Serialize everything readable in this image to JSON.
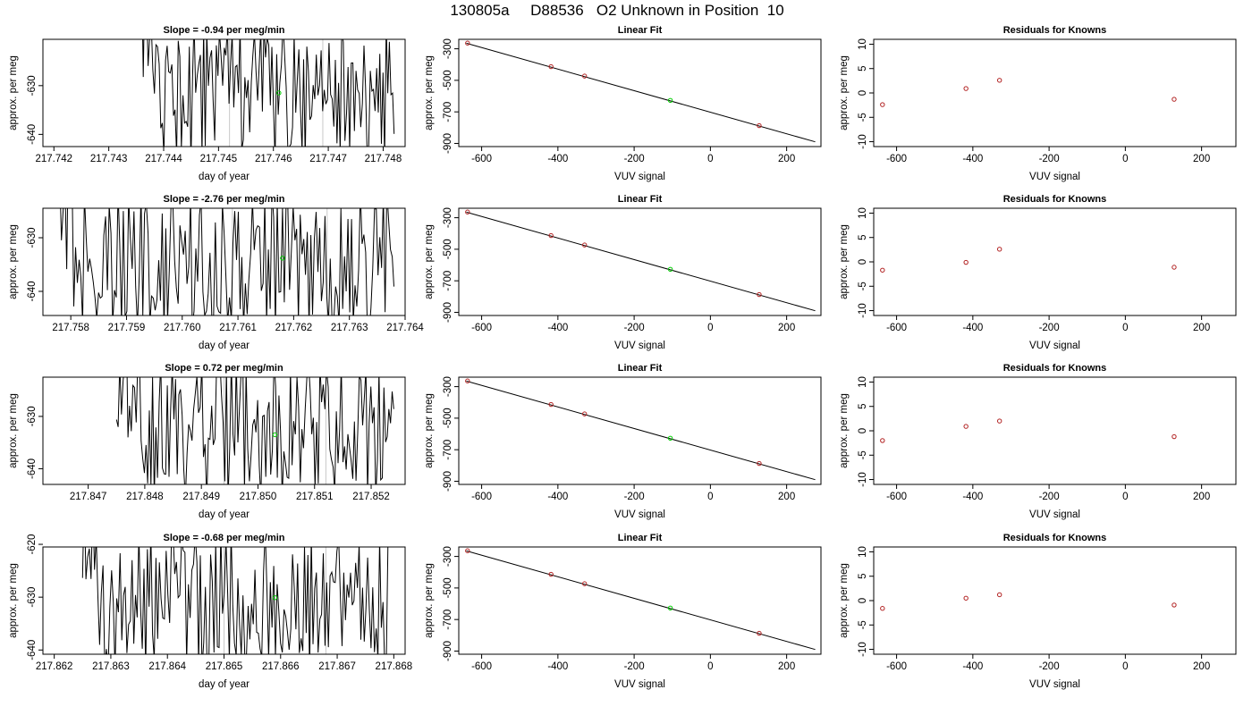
{
  "figure_title": "130805a     D88536   O2 Unknown in Position  10",
  "colors": {
    "line": "#000000",
    "known": "#b22222",
    "unknown": "#00cc00",
    "vline": "#c8c8c8"
  },
  "chart_data": [
    {
      "type": "line",
      "row": 0,
      "panel": "time",
      "title": "Slope =  -0.94  per meg/min",
      "xlabel": "day of year",
      "ylabel": "approx. per meg",
      "xlim": [
        217.7418,
        217.7484
      ],
      "ylim": [
        -642.5,
        -620.5
      ],
      "xticks": [
        217.742,
        217.743,
        217.744,
        217.745,
        217.746,
        217.747,
        217.748
      ],
      "xtick_labels": [
        "217.742",
        "217.743",
        "217.744",
        "217.745",
        "217.746",
        "217.747",
        "217.748"
      ],
      "yticks": [
        -630,
        -640
      ],
      "ytick_labels": [
        "-630",
        "-640"
      ],
      "data_start": 217.7436,
      "data_end": 217.7482,
      "n_points": 160,
      "seed": 11,
      "vlines": [
        217.7452,
        217.7469
      ],
      "unknown_point": [
        217.7461,
        -631.5
      ]
    },
    {
      "type": "scatter",
      "row": 0,
      "panel": "fit",
      "title": "Linear Fit",
      "xlabel": "VUV signal",
      "ylabel": "approx. per meg",
      "xlim": [
        -660,
        290
      ],
      "ylim": [
        -920,
        -240
      ],
      "xticks": [
        -600,
        -400,
        -200,
        0,
        200
      ],
      "xtick_labels": [
        "-600",
        "-400",
        "-200",
        "0",
        "200"
      ],
      "yticks": [
        -300,
        -500,
        -700,
        -900
      ],
      "ytick_labels": [
        "-300",
        "-500",
        "-700",
        "-900"
      ],
      "fit_line": {
        "x": [
          -640,
          275
        ],
        "y": [
          -265,
          -890
        ]
      },
      "known_points": {
        "x": [
          -637,
          -418,
          -330,
          128
        ],
        "y": [
          -264,
          -413,
          -473,
          -787
        ]
      },
      "unknown_point": [
        -105,
        -627
      ]
    },
    {
      "type": "scatter",
      "row": 0,
      "panel": "residuals",
      "title": "Residuals for Knowns",
      "xlabel": "VUV signal",
      "ylabel": "approx. per meg",
      "xlim": [
        -660,
        290
      ],
      "ylim": [
        -11,
        11
      ],
      "xticks": [
        -600,
        -400,
        -200,
        0,
        200
      ],
      "xtick_labels": [
        "-600",
        "-400",
        "-200",
        "0",
        "200"
      ],
      "yticks": [
        10,
        5,
        0,
        -5,
        -10
      ],
      "ytick_labels": [
        "10",
        "5",
        "0",
        "-5",
        "-10"
      ],
      "known_points": {
        "x": [
          -637,
          -418,
          -330,
          128
        ],
        "y": [
          -2.4,
          0.9,
          2.6,
          -1.3
        ]
      }
    },
    {
      "type": "line",
      "row": 1,
      "panel": "time",
      "title": "Slope =  -2.76  per meg/min",
      "xlabel": "day of year",
      "ylabel": "approx. per meg",
      "xlim": [
        217.7575,
        217.764
      ],
      "ylim": [
        -644.5,
        -624.5
      ],
      "xticks": [
        217.758,
        217.759,
        217.76,
        217.761,
        217.762,
        217.763,
        217.764
      ],
      "xtick_labels": [
        "217.758",
        "217.759",
        "217.760",
        "217.761",
        "217.762",
        "217.763",
        "217.764"
      ],
      "yticks": [
        -630,
        -640
      ],
      "ytick_labels": [
        "-630",
        "-640"
      ],
      "data_start": 217.7578,
      "data_end": 217.7638,
      "n_points": 190,
      "seed": 23,
      "vlines": [
        217.7609,
        217.7626
      ],
      "unknown_point": [
        217.7618,
        -633.8
      ]
    },
    {
      "type": "scatter",
      "row": 1,
      "panel": "fit",
      "title": "Linear Fit",
      "xlabel": "VUV signal",
      "ylabel": "approx. per meg",
      "xlim": [
        -660,
        290
      ],
      "ylim": [
        -920,
        -240
      ],
      "xticks": [
        -600,
        -400,
        -200,
        0,
        200
      ],
      "xtick_labels": [
        "-600",
        "-400",
        "-200",
        "0",
        "200"
      ],
      "yticks": [
        -300,
        -500,
        -700,
        -900
      ],
      "ytick_labels": [
        "-300",
        "-500",
        "-700",
        "-900"
      ],
      "fit_line": {
        "x": [
          -640,
          275
        ],
        "y": [
          -265,
          -890
        ]
      },
      "known_points": {
        "x": [
          -637,
          -418,
          -330,
          128
        ],
        "y": [
          -264,
          -413,
          -473,
          -787
        ]
      },
      "unknown_point": [
        -105,
        -627
      ]
    },
    {
      "type": "scatter",
      "row": 1,
      "panel": "residuals",
      "title": "Residuals for Knowns",
      "xlabel": "VUV signal",
      "ylabel": "approx. per meg",
      "xlim": [
        -660,
        290
      ],
      "ylim": [
        -11,
        11
      ],
      "xticks": [
        -600,
        -400,
        -200,
        0,
        200
      ],
      "xtick_labels": [
        "-600",
        "-400",
        "-200",
        "0",
        "200"
      ],
      "yticks": [
        10,
        5,
        0,
        -5,
        -10
      ],
      "ytick_labels": [
        "10",
        "5",
        "0",
        "-5",
        "-10"
      ],
      "known_points": {
        "x": [
          -637,
          -418,
          -330,
          128
        ],
        "y": [
          -1.7,
          -0.1,
          2.6,
          -1.1
        ]
      }
    },
    {
      "type": "line",
      "row": 2,
      "panel": "time",
      "title": "Slope =  0.72  per meg/min",
      "xlabel": "day of year",
      "ylabel": "approx. per meg",
      "xlim": [
        217.8462,
        217.8526
      ],
      "ylim": [
        -643,
        -622.5
      ],
      "xticks": [
        217.847,
        217.848,
        217.849,
        217.85,
        217.851,
        217.852
      ],
      "xtick_labels": [
        "217.847",
        "217.848",
        "217.849",
        "217.850",
        "217.851",
        "217.852"
      ],
      "yticks": [
        -630,
        -640
      ],
      "ytick_labels": [
        "-630",
        "-640"
      ],
      "data_start": 217.8475,
      "data_end": 217.8524,
      "n_points": 170,
      "seed": 37,
      "vlines": [
        217.8494,
        217.8512
      ],
      "unknown_point": [
        217.8503,
        -633.5
      ]
    },
    {
      "type": "scatter",
      "row": 2,
      "panel": "fit",
      "title": "Linear Fit",
      "xlabel": "VUV signal",
      "ylabel": "approx. per meg",
      "xlim": [
        -660,
        290
      ],
      "ylim": [
        -920,
        -240
      ],
      "xticks": [
        -600,
        -400,
        -200,
        0,
        200
      ],
      "xtick_labels": [
        "-600",
        "-400",
        "-200",
        "0",
        "200"
      ],
      "yticks": [
        -300,
        -500,
        -700,
        -900
      ],
      "ytick_labels": [
        "-300",
        "-500",
        "-700",
        "-900"
      ],
      "fit_line": {
        "x": [
          -640,
          275
        ],
        "y": [
          -265,
          -890
        ]
      },
      "known_points": {
        "x": [
          -637,
          -418,
          -330,
          128
        ],
        "y": [
          -264,
          -413,
          -473,
          -787
        ]
      },
      "unknown_point": [
        -105,
        -627
      ]
    },
    {
      "type": "scatter",
      "row": 2,
      "panel": "residuals",
      "title": "Residuals for Knowns",
      "xlabel": "VUV signal",
      "ylabel": "approx. per meg",
      "xlim": [
        -660,
        290
      ],
      "ylim": [
        -11,
        11
      ],
      "xticks": [
        -600,
        -400,
        -200,
        0,
        200
      ],
      "xtick_labels": [
        "-600",
        "-400",
        "-200",
        "0",
        "200"
      ],
      "yticks": [
        10,
        5,
        0,
        -5,
        -10
      ],
      "ytick_labels": [
        "10",
        "5",
        "0",
        "-5",
        "-10"
      ],
      "known_points": {
        "x": [
          -637,
          -418,
          -330,
          128
        ],
        "y": [
          -2.0,
          0.9,
          2.0,
          -1.2
        ]
      }
    },
    {
      "type": "line",
      "row": 3,
      "panel": "time",
      "title": "Slope =  -0.68  per meg/min",
      "xlabel": "day of year",
      "ylabel": "approx. per meg",
      "xlim": [
        217.8618,
        217.8682
      ],
      "ylim": [
        -640.8,
        -620.5
      ],
      "xticks": [
        217.862,
        217.863,
        217.864,
        217.865,
        217.866,
        217.867,
        217.868
      ],
      "xtick_labels": [
        "217.862",
        "217.863",
        "217.864",
        "217.865",
        "217.866",
        "217.867",
        "217.868"
      ],
      "yticks": [
        -620,
        -630,
        -640
      ],
      "ytick_labels": [
        "-620",
        "-630",
        "-640"
      ],
      "data_start": 217.8625,
      "data_end": 217.8679,
      "n_points": 180,
      "seed": 53,
      "vlines": [
        217.865,
        217.8668
      ],
      "unknown_point": [
        217.8659,
        -630.1
      ]
    },
    {
      "type": "scatter",
      "row": 3,
      "panel": "fit",
      "title": "Linear Fit",
      "xlabel": "VUV signal",
      "ylabel": "approx. per meg",
      "xlim": [
        -660,
        290
      ],
      "ylim": [
        -920,
        -240
      ],
      "xticks": [
        -600,
        -400,
        -200,
        0,
        200
      ],
      "xtick_labels": [
        "-600",
        "-400",
        "-200",
        "0",
        "200"
      ],
      "yticks": [
        -300,
        -500,
        -700,
        -900
      ],
      "ytick_labels": [
        "-300",
        "-500",
        "-700",
        "-900"
      ],
      "fit_line": {
        "x": [
          -640,
          275
        ],
        "y": [
          -265,
          -890
        ]
      },
      "known_points": {
        "x": [
          -637,
          -418,
          -330,
          128
        ],
        "y": [
          -264,
          -413,
          -473,
          -787
        ]
      },
      "unknown_point": [
        -105,
        -627
      ]
    },
    {
      "type": "scatter",
      "row": 3,
      "panel": "residuals",
      "title": "Residuals for Knowns",
      "xlabel": "VUV signal",
      "ylabel": "approx. per meg",
      "xlim": [
        -660,
        290
      ],
      "ylim": [
        -11,
        11
      ],
      "xticks": [
        -600,
        -400,
        -200,
        0,
        200
      ],
      "xtick_labels": [
        "-600",
        "-400",
        "-200",
        "0",
        "200"
      ],
      "yticks": [
        10,
        5,
        0,
        -5,
        -10
      ],
      "ytick_labels": [
        "10",
        "5",
        "0",
        "-5",
        "-10"
      ],
      "known_points": {
        "x": [
          -637,
          -418,
          -330,
          128
        ],
        "y": [
          -1.6,
          0.5,
          1.2,
          -0.9
        ]
      }
    }
  ]
}
